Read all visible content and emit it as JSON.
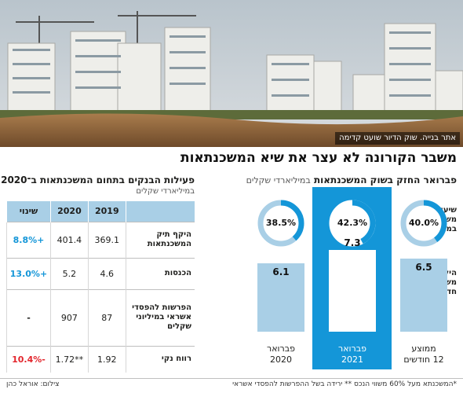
{
  "photo": {
    "caption": "אתר בנייה. שוק הדיור שועט קדימה"
  },
  "headline": "משבר הקורונה לא עצר את שיא המשכנתאות",
  "panel": {
    "title": "פברואר החזק בשוק המשכנתאות",
    "unit": "במיליארדי שקלים",
    "row_label_rate": "שיעור משכנתאות במינוף גבוה*",
    "row_label_volume": "היקף משכנתאות חדשות"
  },
  "table": {
    "title": "פעילות הבנקים בתחום המשכנתאות ב־2020",
    "subtitle": "במיליארדי שקלים",
    "headers": [
      "",
      "2019",
      "2020",
      "שינוי"
    ],
    "rows": [
      {
        "label": "היקף תיק המשכנתאות",
        "y2019": "369.1",
        "y2020": "401.4",
        "change": "+8.8%",
        "change_color": "#1496d8"
      },
      {
        "label": "הכנסות",
        "y2019": "4.6",
        "y2020": "5.2",
        "change": "+13.0%",
        "change_color": "#1496d8"
      },
      {
        "label": "הפרשות להפסדי אשראי במיליוני שקלים",
        "y2019": "87",
        "y2020": "907",
        "change": "-",
        "change_color": "#1d1d1b"
      },
      {
        "label": "רווח נקי",
        "y2019": "1.92",
        "y2020": "**1.72",
        "change": "-10.4%",
        "change_color": "#e3262d"
      }
    ]
  },
  "footer": {
    "footnote": "*המשכנתא מעל 60% משווי הנכס  ** ירידה בשל ההפרשות להפסדי אשראי",
    "credit": "צילום: אוראל כהן"
  },
  "chart_data": {
    "type": "bar",
    "title": "פברואר החזק בשוק המשכנתאות",
    "subtitle": "במיליארדי שקלים",
    "categories": [
      "ממוצע 12 חודשים",
      "פברואר 2021",
      "פברואר 2020"
    ],
    "category_lines": [
      [
        "ממוצע",
        "12 חודשים"
      ],
      [
        "פברואר",
        "2021"
      ],
      [
        "פברואר",
        "2020"
      ]
    ],
    "highlighted_category": "פברואר 2021",
    "series": [
      {
        "name": "היקף משכנתאות חדשות",
        "values": [
          6.5,
          7.3,
          6.1
        ],
        "labels": [
          "6.5",
          "7.3",
          "6.1"
        ]
      },
      {
        "name": "שיעור משכנתאות במינוף גבוה*",
        "values": [
          40.0,
          42.3,
          38.5
        ],
        "labels": [
          "40.0%",
          "42.3%",
          "38.5%"
        ]
      }
    ],
    "colors": {
      "accent": "#1496d8",
      "bar": "#a9cfe6",
      "ring_track": "#a9cfe6",
      "ring_fill": "#1496d8"
    }
  }
}
